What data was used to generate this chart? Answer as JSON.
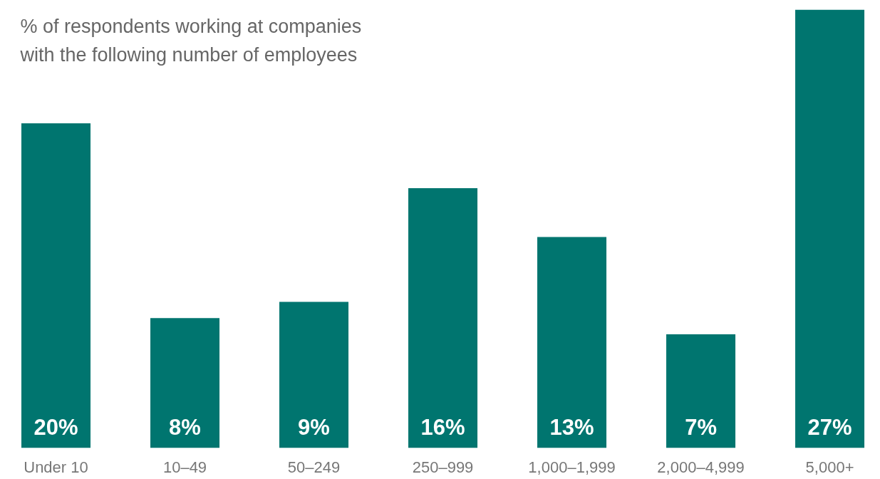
{
  "chart_data": {
    "type": "bar",
    "subtitle": "% of respondents working at companies\nwith the following number of employees",
    "categories": [
      "Under 10",
      "10–49",
      "50–249",
      "250–999",
      "1,000–1,999",
      "2,000–4,999",
      "5,000+"
    ],
    "values": [
      20,
      8,
      9,
      16,
      13,
      7,
      27
    ],
    "value_labels": [
      "20%",
      "8%",
      "9%",
      "16%",
      "13%",
      "7%",
      "27%"
    ],
    "color": "#00756f"
  }
}
